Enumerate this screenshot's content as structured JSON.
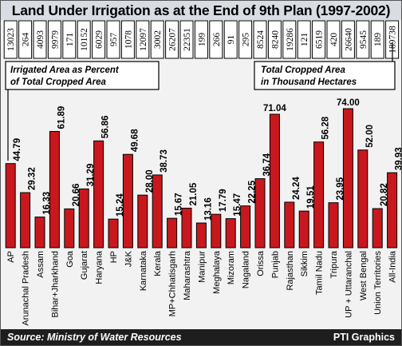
{
  "title": "Land Under Irrigation as at the End of 9th Plan (1997-2002)",
  "source": "Source: Ministry of Water Resources",
  "credit": "PTI Graphics",
  "legend": {
    "left_line1": "Irrigated Area as Percent",
    "left_line2": "of Total Cropped Area",
    "right_line1": "Total Cropped Area",
    "right_line2": "in Thousand Hectares"
  },
  "colors": {
    "bar": "#c8181e",
    "title_bg": "#d8dde4",
    "background": "#f2f2f2",
    "footer_bg": "#1e1e1e",
    "number_box": "#ffffff"
  },
  "chart_data": {
    "type": "bar",
    "categories": [
      "AP",
      "Arunachal Pradesh",
      "Assam",
      "Bihar+Jharkhand",
      "Goa",
      "Gujarat",
      "Haryana",
      "HP",
      "J&K",
      "Karnataka",
      "Kerala",
      "MP+Chhatisgarh",
      "Maharashtra",
      "Manipur",
      "Meghalaya",
      "Mizoram",
      "Nagaland",
      "Orissa",
      "Punjab",
      "Rajasthan",
      "Sikkim",
      "Tamil Nadu",
      "Tripura",
      "UP + Uttaranchal",
      "West Bengal",
      "Union Territories",
      "All-India"
    ],
    "series": [
      {
        "name": "Irrigated Area as Percent of Total Cropped Area",
        "values": [
          44.79,
          29.32,
          16.33,
          61.89,
          20.66,
          31.29,
          56.86,
          15.24,
          49.68,
          28.0,
          38.73,
          15.67,
          21.05,
          13.16,
          17.79,
          15.47,
          22.25,
          36.74,
          71.04,
          24.24,
          19.51,
          56.28,
          23.95,
          74.0,
          52.0,
          20.82,
          39.93
        ]
      },
      {
        "name": "Total Cropped Area in Thousand Hectares",
        "values": [
          "13023",
          "264",
          "4093",
          "9979",
          "171",
          "10152",
          "6029",
          "957",
          "1078",
          "12097",
          "3002",
          "26207",
          "22351",
          "199",
          "266",
          "91",
          "295",
          "8524",
          "8240",
          "19286",
          "121",
          "6519",
          "420",
          "26640",
          "9545",
          "189",
          "189738"
        ]
      }
    ]
  }
}
